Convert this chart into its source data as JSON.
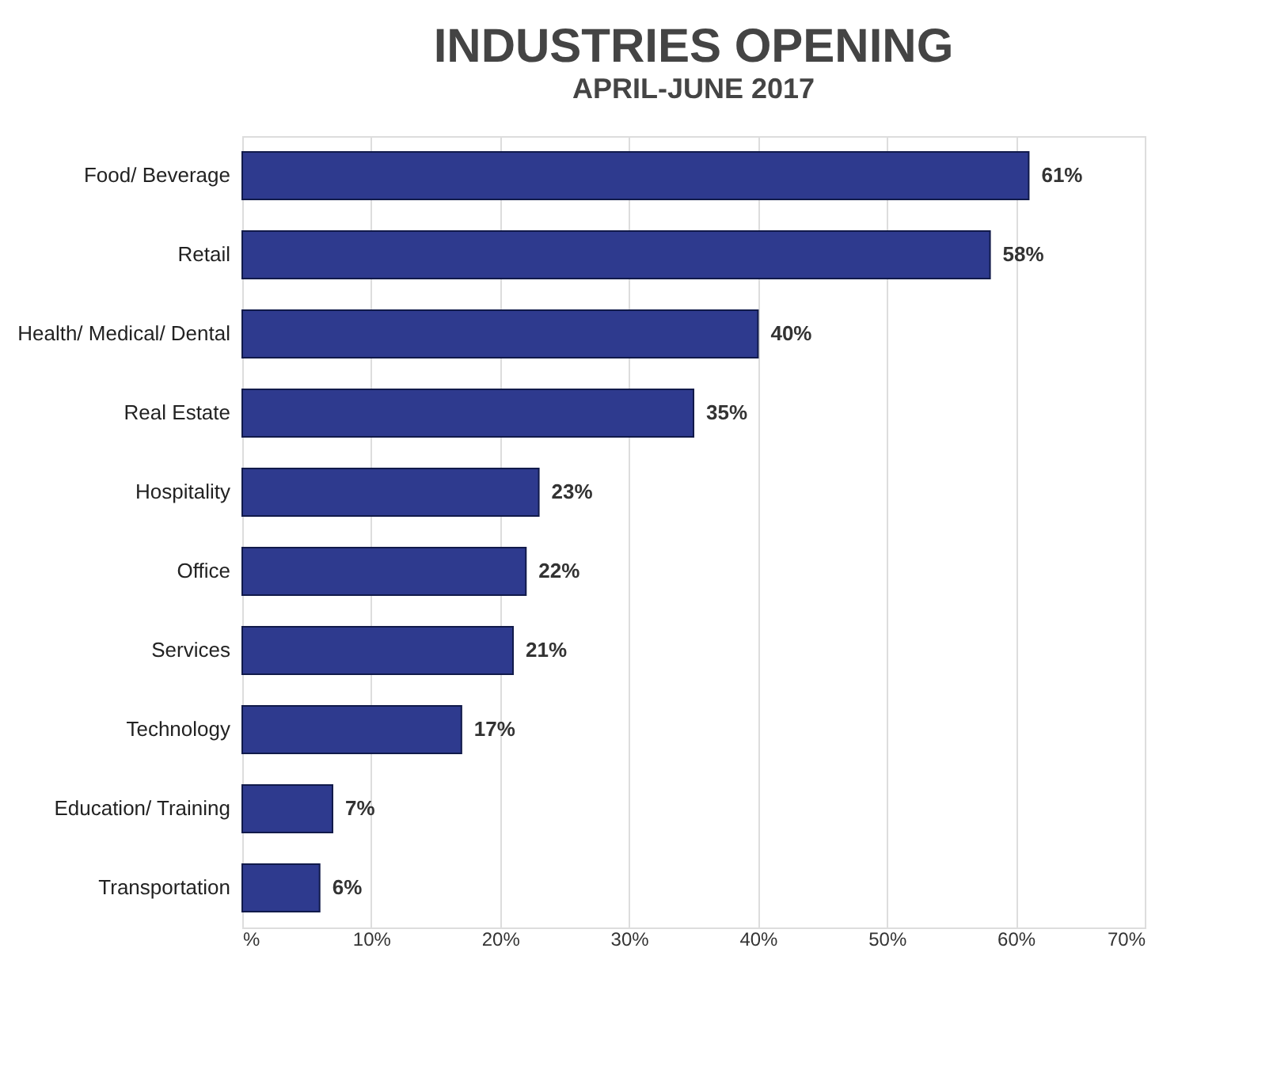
{
  "chart_data": {
    "type": "bar",
    "orientation": "horizontal",
    "title": "INDUSTRIES OPENING",
    "subtitle": "APRIL-JUNE 2017",
    "categories": [
      "Food/ Beverage",
      "Retail",
      "Health/ Medical/ Dental",
      "Real Estate",
      "Hospitality",
      "Office",
      "Services",
      "Technology",
      "Education/ Training",
      "Transportation"
    ],
    "values": [
      61,
      58,
      40,
      35,
      23,
      22,
      21,
      17,
      7,
      6
    ],
    "value_labels": [
      "61%",
      "58%",
      "40%",
      "35%",
      "23%",
      "22%",
      "21%",
      "17%",
      "7%",
      "6%"
    ],
    "color": "#2e3a8e",
    "xlim": [
      0,
      70
    ],
    "xticks": [
      {
        "value": 0,
        "label": "%"
      },
      {
        "value": 10,
        "label": "10%"
      },
      {
        "value": 20,
        "label": "20%"
      },
      {
        "value": 30,
        "label": "30%"
      },
      {
        "value": 40,
        "label": "40%"
      },
      {
        "value": 50,
        "label": "50%"
      },
      {
        "value": 60,
        "label": "60%"
      },
      {
        "value": 70,
        "label": "70%"
      }
    ],
    "grid": "x"
  }
}
